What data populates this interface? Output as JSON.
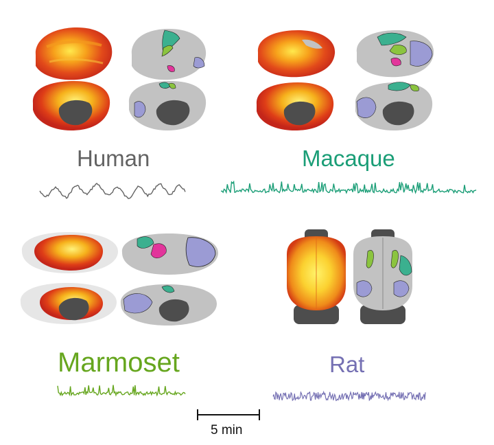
{
  "colors": {
    "human": "#636363",
    "macaque": "#1b9e77",
    "marmoset": "#66a61e",
    "rat": "#7570b3",
    "cortex": "#c2c2c2",
    "medial_wall": "#4d4d4d",
    "heat_low": "#d7301f",
    "heat_high": "#ffe94d",
    "network_teal": "#3bb08f",
    "network_green": "#8bc43f",
    "network_lavender": "#9b9bd4",
    "network_pink": "#e2359b"
  },
  "species": [
    {
      "key": "human",
      "label": "Human"
    },
    {
      "key": "macaque",
      "label": "Macaque"
    },
    {
      "key": "marmoset",
      "label": "Marmoset"
    },
    {
      "key": "rat",
      "label": "Rat"
    }
  ],
  "scale_bar": {
    "label": "5 min"
  }
}
